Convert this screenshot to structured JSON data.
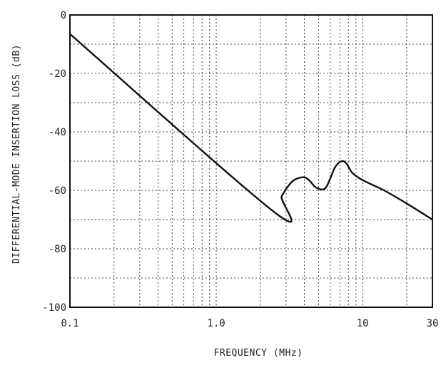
{
  "chart_data": {
    "type": "line",
    "title": "",
    "xlabel": "FREQUENCY  (MHz)",
    "ylabel": "DIFFERENTIAL-MODE INSERTION LOSS  (dB)",
    "x_scale": "log",
    "xlim": [
      0.1,
      30
    ],
    "ylim": [
      -100,
      0
    ],
    "x_ticks": [
      {
        "value": 0.1,
        "label": "0.1"
      },
      {
        "value": 1,
        "label": "1.0"
      },
      {
        "value": 10,
        "label": "10"
      },
      {
        "value": 30,
        "label": "30"
      }
    ],
    "y_ticks": [
      {
        "value": 0,
        "label": "0"
      },
      {
        "value": -20,
        "label": "-20"
      },
      {
        "value": -40,
        "label": "-40"
      },
      {
        "value": -60,
        "label": "-60"
      },
      {
        "value": -80,
        "label": "-80"
      },
      {
        "value": -100,
        "label": "-100"
      }
    ],
    "grid": true,
    "grid_style": "dotted",
    "series": [
      {
        "x": [
          0.1,
          2.5,
          2.8,
          3.3,
          3.9,
          4.3,
          4.8,
          5.5,
          6.0,
          6.5,
          7.2,
          7.8,
          8.5,
          10,
          14,
          20,
          30
        ],
        "y": [
          -6.5,
          -67.5,
          -62,
          -57,
          -55.5,
          -56.5,
          -59,
          -59.5,
          -56,
          -52,
          -50,
          -51,
          -54,
          -56.5,
          -60,
          -64.5,
          -70
        ]
      }
    ]
  }
}
